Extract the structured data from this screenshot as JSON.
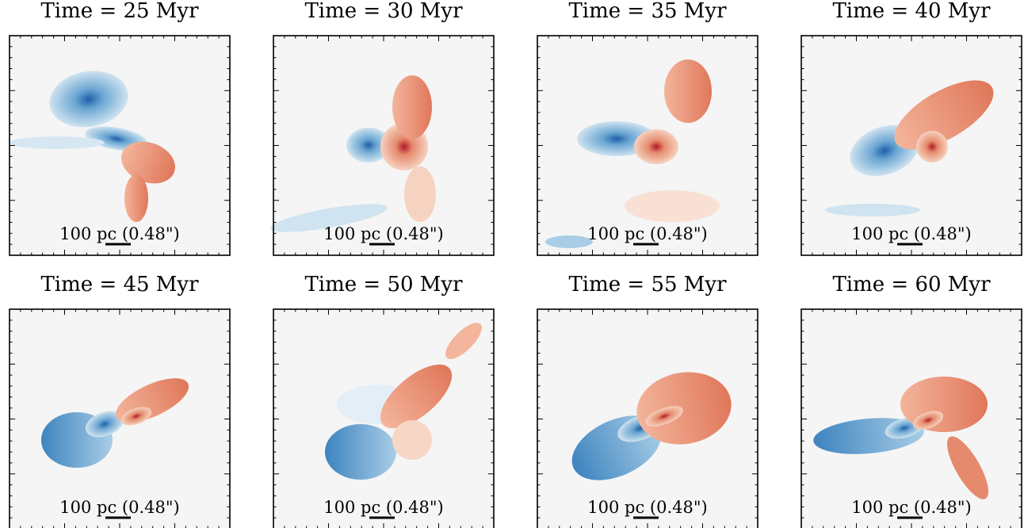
{
  "panels": [
    {
      "title": "Time = 25 Myr",
      "scale_label": "100 pc (0.48\")"
    },
    {
      "title": "Time = 30 Myr",
      "scale_label": "100 pc (0.48\")"
    },
    {
      "title": "Time = 35 Myr",
      "scale_label": "100 pc (0.48\")"
    },
    {
      "title": "Time = 40 Myr",
      "scale_label": "100 pc (0.48\")"
    },
    {
      "title": "Time = 45 Myr",
      "scale_label": "100 pc (0.48\")"
    },
    {
      "title": "Time = 50 Myr",
      "scale_label": "100 pc (0.48\")"
    },
    {
      "title": "Time = 55 Myr",
      "scale_label": "100 pc (0.48\")"
    },
    {
      "title": "Time = 60 Myr",
      "scale_label": "100 pc (0.48\")"
    }
  ]
}
